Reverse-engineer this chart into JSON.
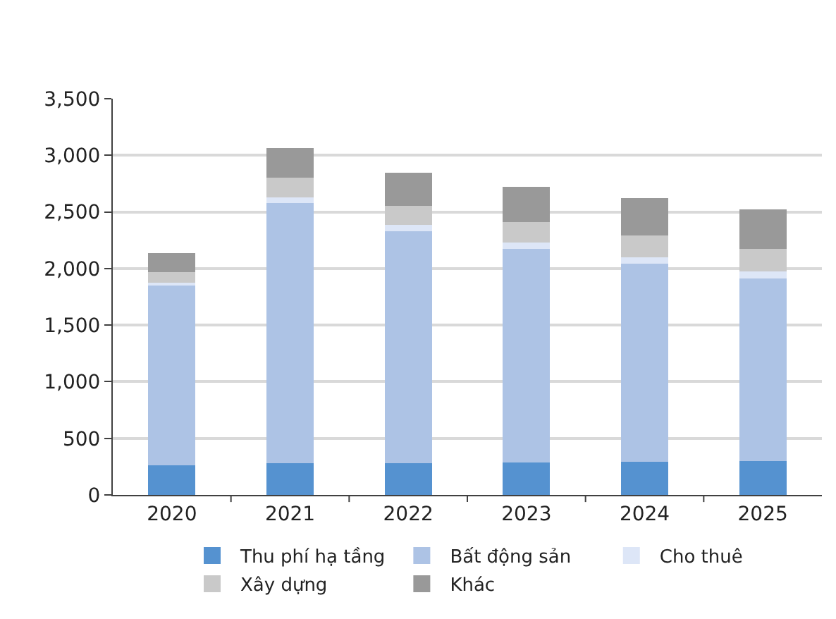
{
  "chart_data": {
    "type": "bar",
    "stacked": true,
    "categories": [
      "2020",
      "2021",
      "2022",
      "2023",
      "2024",
      "2025"
    ],
    "series": [
      {
        "name": "Thu phí hạ tầng",
        "color": "#5592d0",
        "values": [
          260,
          280,
          280,
          285,
          290,
          300
        ]
      },
      {
        "name": "Bất động sản",
        "color": "#adc3e5",
        "values": [
          1590,
          2300,
          2050,
          1890,
          1750,
          1610
        ]
      },
      {
        "name": "Cho thuê",
        "color": "#dde6f7",
        "values": [
          25,
          50,
          55,
          55,
          60,
          65
        ]
      },
      {
        "name": "Xây dựng",
        "color": "#c9c9c9",
        "values": [
          90,
          170,
          170,
          180,
          190,
          200
        ]
      },
      {
        "name": "Khác",
        "color": "#999999",
        "values": [
          170,
          265,
          290,
          310,
          330,
          345
        ]
      }
    ],
    "ylim": [
      0,
      3500
    ],
    "yticks": [
      0,
      {
        "value": 500,
        "label": "500"
      },
      {
        "value": 1000,
        "label": "1,000"
      },
      {
        "value": 1500,
        "label": "1,500"
      },
      {
        "value": 2000,
        "label": "2,000"
      },
      {
        "value": 2500,
        "label": "2,500"
      },
      {
        "value": 3000,
        "label": "3,000"
      },
      {
        "value": 3500,
        "label": "3,500"
      }
    ],
    "grid": "y",
    "legend": "bottom"
  }
}
